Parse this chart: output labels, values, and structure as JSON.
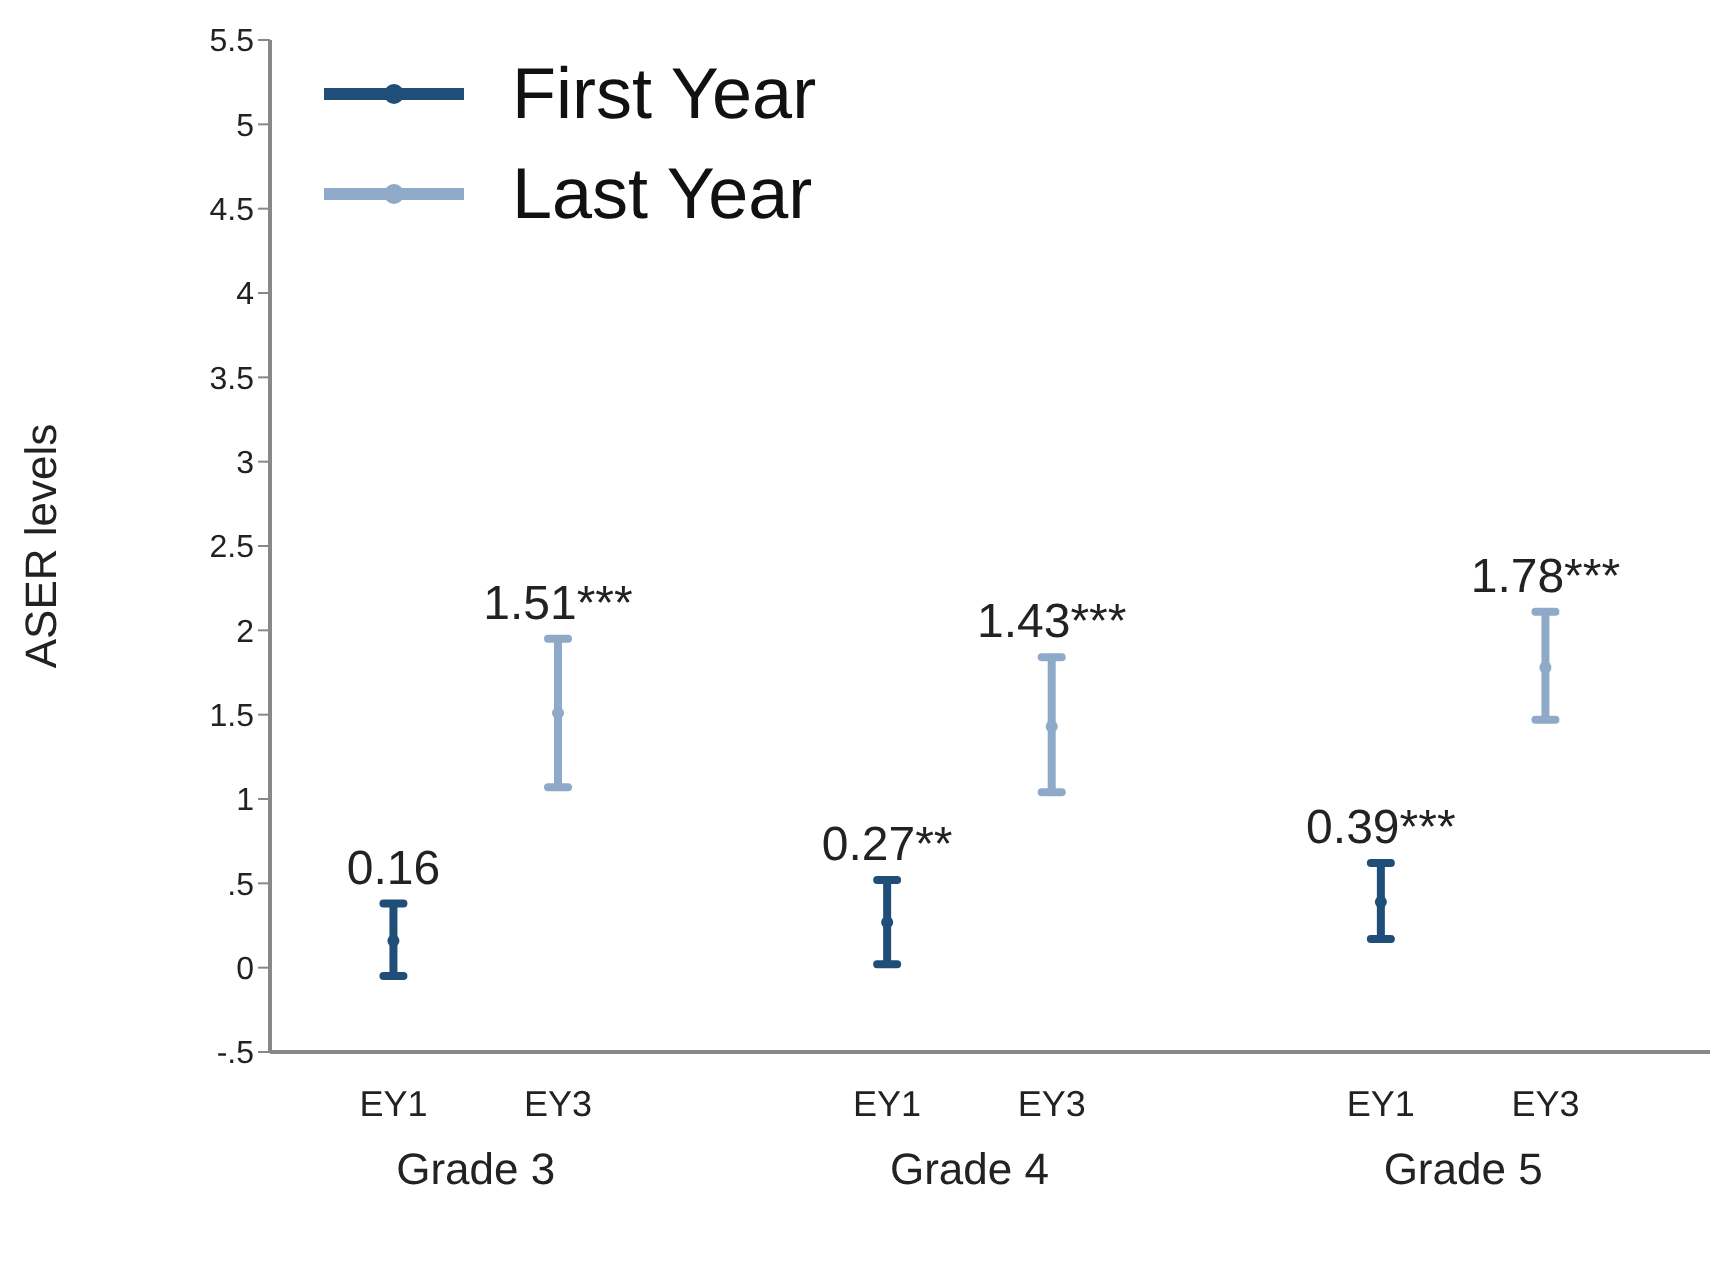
{
  "chart_data": {
    "type": "scatter",
    "ylabel": "ASER levels",
    "categories": [
      "EY1",
      "EY3",
      null,
      "EY1",
      "EY3",
      null,
      "EY1",
      "EY3"
    ],
    "annotations": [
      "Grade 3",
      "Grade 4",
      "Grade 5"
    ],
    "series": [
      {
        "name": "First Year",
        "color": "#1f4e79",
        "values": [
          0.16,
          null,
          null,
          0.27,
          null,
          null,
          0.39,
          null
        ],
        "errors": [
          [
            -0.05,
            0.38
          ],
          null,
          null,
          [
            0.02,
            0.52
          ],
          null,
          null,
          [
            0.17,
            0.62
          ],
          null
        ],
        "value_labels": [
          "0.16",
          null,
          null,
          "0.27**",
          null,
          null,
          "0.39***",
          null
        ]
      },
      {
        "name": "Last Year",
        "color": "#8eaac8",
        "values": [
          null,
          1.51,
          null,
          null,
          1.43,
          null,
          null,
          1.78
        ],
        "errors": [
          null,
          [
            1.07,
            1.95
          ],
          null,
          null,
          [
            1.04,
            1.84
          ],
          null,
          null,
          [
            1.47,
            2.11
          ]
        ],
        "value_labels": [
          null,
          "1.51***",
          null,
          null,
          "1.43***",
          null,
          null,
          "1.78***"
        ]
      }
    ],
    "ylim": [
      -0.5,
      5.5
    ],
    "yticks": [
      {
        "value": -0.5,
        "label": "-.5"
      },
      0,
      {
        "value": 0.5,
        "label": ".5"
      },
      1,
      1.5,
      2,
      2.5,
      3,
      3.5,
      4,
      4.5,
      5,
      5.5
    ],
    "marker": "circle",
    "grid": false,
    "legend": "top left"
  }
}
